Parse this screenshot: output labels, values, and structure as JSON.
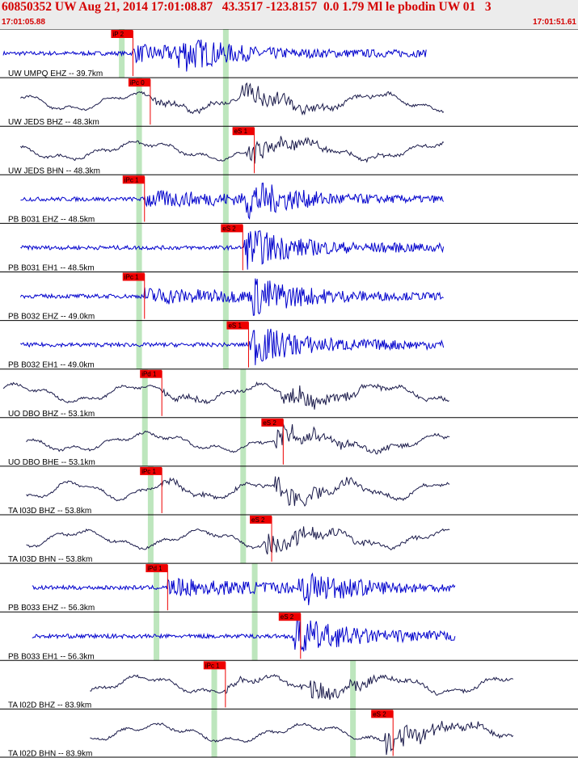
{
  "header": {
    "title": "60850352 UW Aug 21, 2014 17:01:08.87   43.3517 -123.8157  0.0 1.79 Ml le pbodin UW 01   3",
    "time_start": "17:01:05.88",
    "time_end": "17:01:51.61"
  },
  "colors": {
    "broadband": "#1a1a4a",
    "short_period": "#0000cc",
    "pick": "#ee0000",
    "window": "#bde6bd",
    "title": "#d40000"
  },
  "chart_data": {
    "type": "line",
    "title": "60850352 UW Aug 21, 2014 17:01:08.87   43.3517 -123.8157  0.0 1.79 Ml le pbodin UW 01   3",
    "x_start": "17:01:05.88",
    "x_end": "17:01:51.61",
    "traces": [
      {
        "label": "UW UMPQ EHZ -- 39.7km",
        "kind": "short_period",
        "window": [
          0.85,
          2.0
        ],
        "start": 0.0,
        "end": 0.85,
        "event": 0.32,
        "picks": [
          {
            "label": "iP 2",
            "t": 0.24
          }
        ],
        "pick_pct": 23,
        "window_pct": [
          21,
          39
        ]
      },
      {
        "label": "UW JEDS BHZ -- 48.3km",
        "kind": "broadband",
        "start": 0.03,
        "end": 0.88,
        "event": 0.43,
        "picks": [
          {
            "label": "iPc 0",
            "t": 0.26
          }
        ],
        "pick_pct": 26,
        "window_pct": [
          24,
          39
        ]
      },
      {
        "label": "UW JEDS BHN -- 48.3km",
        "kind": "broadband",
        "start": 0.03,
        "end": 0.88,
        "event": 0.44,
        "picks": [
          {
            "label": "eS 1",
            "t": 0.44
          }
        ],
        "pick_pct": 44,
        "window_pct": [
          24,
          39
        ]
      },
      {
        "label": "PB B031 EHZ -- 48.5km",
        "kind": "short_period",
        "start": 0.03,
        "end": 0.88,
        "event": 0.44,
        "picks": [
          {
            "label": "iPc 1",
            "t": 0.25
          }
        ],
        "pick_pct": 25,
        "window_pct": [
          24,
          39
        ]
      },
      {
        "label": "PB B031 EH1 -- 48.5km",
        "kind": "short_period",
        "start": 0.03,
        "end": 0.88,
        "event": 0.44,
        "picks": [
          {
            "label": "eS 2",
            "t": 0.42
          }
        ],
        "pick_pct": 42,
        "window_pct": [
          24,
          39
        ]
      },
      {
        "label": "PB B032 EHZ -- 49.0km",
        "kind": "short_period",
        "start": 0.03,
        "end": 0.88,
        "event": 0.45,
        "picks": [
          {
            "label": "iPc 1",
            "t": 0.25
          }
        ],
        "pick_pct": 25,
        "window_pct": [
          24,
          39
        ]
      },
      {
        "label": "PB B032 EH1 -- 49.0km",
        "kind": "short_period",
        "start": 0.03,
        "end": 0.88,
        "event": 0.45,
        "picks": [
          {
            "label": "eS 1",
            "t": 0.43
          }
        ],
        "pick_pct": 43,
        "window_pct": [
          24,
          39
        ]
      },
      {
        "label": "UO DBO BHZ -- 53.1km",
        "kind": "broadband",
        "start": 0.0,
        "end": 0.89,
        "event": 0.5,
        "picks": [
          {
            "label": "iPd 1",
            "t": 0.28
          }
        ],
        "pick_pct": 28,
        "window_pct": [
          25,
          42
        ]
      },
      {
        "label": "UO DBO BHE -- 53.1km",
        "kind": "broadband",
        "start": 0.04,
        "end": 0.89,
        "event": 0.49,
        "picks": [
          {
            "label": "eS 2",
            "t": 0.49
          }
        ],
        "pick_pct": 49,
        "window_pct": [
          25,
          42
        ]
      },
      {
        "label": "TA I03D BHZ -- 53.8km",
        "kind": "broadband",
        "start": 0.04,
        "end": 0.89,
        "event": 0.49,
        "picks": [
          {
            "label": "iPc 1",
            "t": 0.28
          }
        ],
        "pick_pct": 28,
        "window_pct": [
          26,
          42
        ]
      },
      {
        "label": "TA I03D BHN -- 53.8km",
        "kind": "broadband",
        "start": 0.04,
        "end": 0.89,
        "event": 0.47,
        "picks": [
          {
            "label": "eS 2",
            "t": 0.47
          }
        ],
        "pick_pct": 47,
        "window_pct": [
          26,
          42
        ]
      },
      {
        "label": "PB B033 EHZ -- 56.3km",
        "kind": "short_period",
        "start": 0.05,
        "end": 0.9,
        "event": 0.53,
        "picks": [
          {
            "label": "iPd 1",
            "t": 0.29
          }
        ],
        "pick_pct": 29,
        "window_pct": [
          27,
          44
        ]
      },
      {
        "label": "PB B033 EH1 -- 56.3km",
        "kind": "short_period",
        "start": 0.05,
        "end": 0.9,
        "event": 0.52,
        "picks": [
          {
            "label": "eS 2",
            "t": 0.52
          }
        ],
        "pick_pct": 52,
        "window_pct": [
          27,
          44
        ]
      },
      {
        "label": "TA I02D BHZ -- 83.9km",
        "kind": "broadband",
        "start": 0.15,
        "end": 1.0,
        "event": 0.55,
        "picks": [
          {
            "label": "iPc 1",
            "t": 0.39
          }
        ],
        "pick_pct": 39,
        "window_pct": [
          37,
          61
        ]
      },
      {
        "label": "TA I02D BHN -- 83.9km",
        "kind": "broadband",
        "start": 0.15,
        "end": 1.0,
        "event": 0.68,
        "picks": [
          {
            "label": "eS 2",
            "t": 0.68
          }
        ],
        "pick_pct": 68,
        "window_pct": [
          37,
          61
        ]
      }
    ]
  }
}
